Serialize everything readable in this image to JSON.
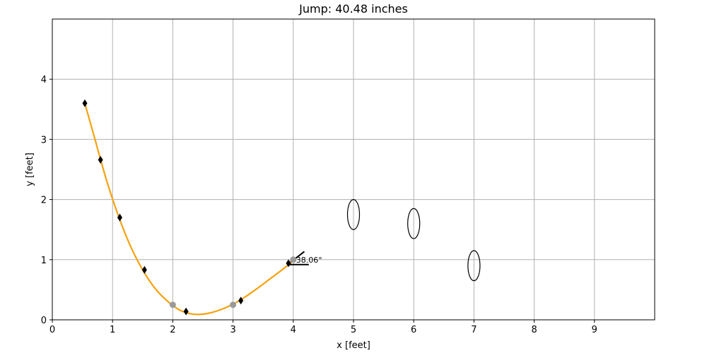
{
  "chart_data": {
    "type": "scatter",
    "title": "Jump: 40.48 inches",
    "xlabel": "x [feet]",
    "ylabel": "y [feet]",
    "xlim": [
      0,
      10
    ],
    "ylim": [
      0,
      5
    ],
    "xticks": [
      0,
      1,
      2,
      3,
      4,
      5,
      6,
      7,
      8,
      9
    ],
    "yticks": [
      0,
      1,
      2,
      3,
      4
    ],
    "grid": true,
    "colors": {
      "curve": "#f5a210",
      "markers": "#000000",
      "measured": "#9a9a9a",
      "grid": "#b0b0b0"
    },
    "trajectory": {
      "x": [
        0.54,
        0.7,
        0.9,
        1.1,
        1.3,
        1.5,
        1.7,
        1.9,
        2.1,
        2.3,
        2.45,
        2.6,
        2.8,
        3.0,
        3.2,
        3.4,
        3.6,
        3.8,
        4.0
      ],
      "y": [
        3.6,
        3.03,
        2.32,
        1.72,
        1.22,
        0.83,
        0.53,
        0.32,
        0.17,
        0.1,
        0.09,
        0.11,
        0.17,
        0.26,
        0.38,
        0.52,
        0.67,
        0.82,
        0.98
      ]
    },
    "diamond_markers": {
      "x": [
        0.54,
        0.8,
        1.12,
        1.53,
        2.22,
        3.13,
        3.92
      ],
      "y": [
        3.6,
        2.66,
        1.7,
        0.83,
        0.14,
        0.32,
        0.94
      ]
    },
    "measured_points": {
      "x": [
        2.0,
        3.0,
        4.0
      ],
      "y": [
        0.25,
        0.25,
        1.0
      ]
    },
    "ellipses": [
      {
        "cx": 5.0,
        "cy": 1.75,
        "rx": 0.1,
        "ry": 0.25
      },
      {
        "cx": 6.0,
        "cy": 1.6,
        "rx": 0.1,
        "ry": 0.25
      },
      {
        "cx": 7.0,
        "cy": 0.9,
        "rx": 0.1,
        "ry": 0.25
      }
    ],
    "angle_annotation": {
      "label": "38.06°",
      "x": 4.0,
      "y": 1.0,
      "angle_deg": 38.06
    }
  }
}
